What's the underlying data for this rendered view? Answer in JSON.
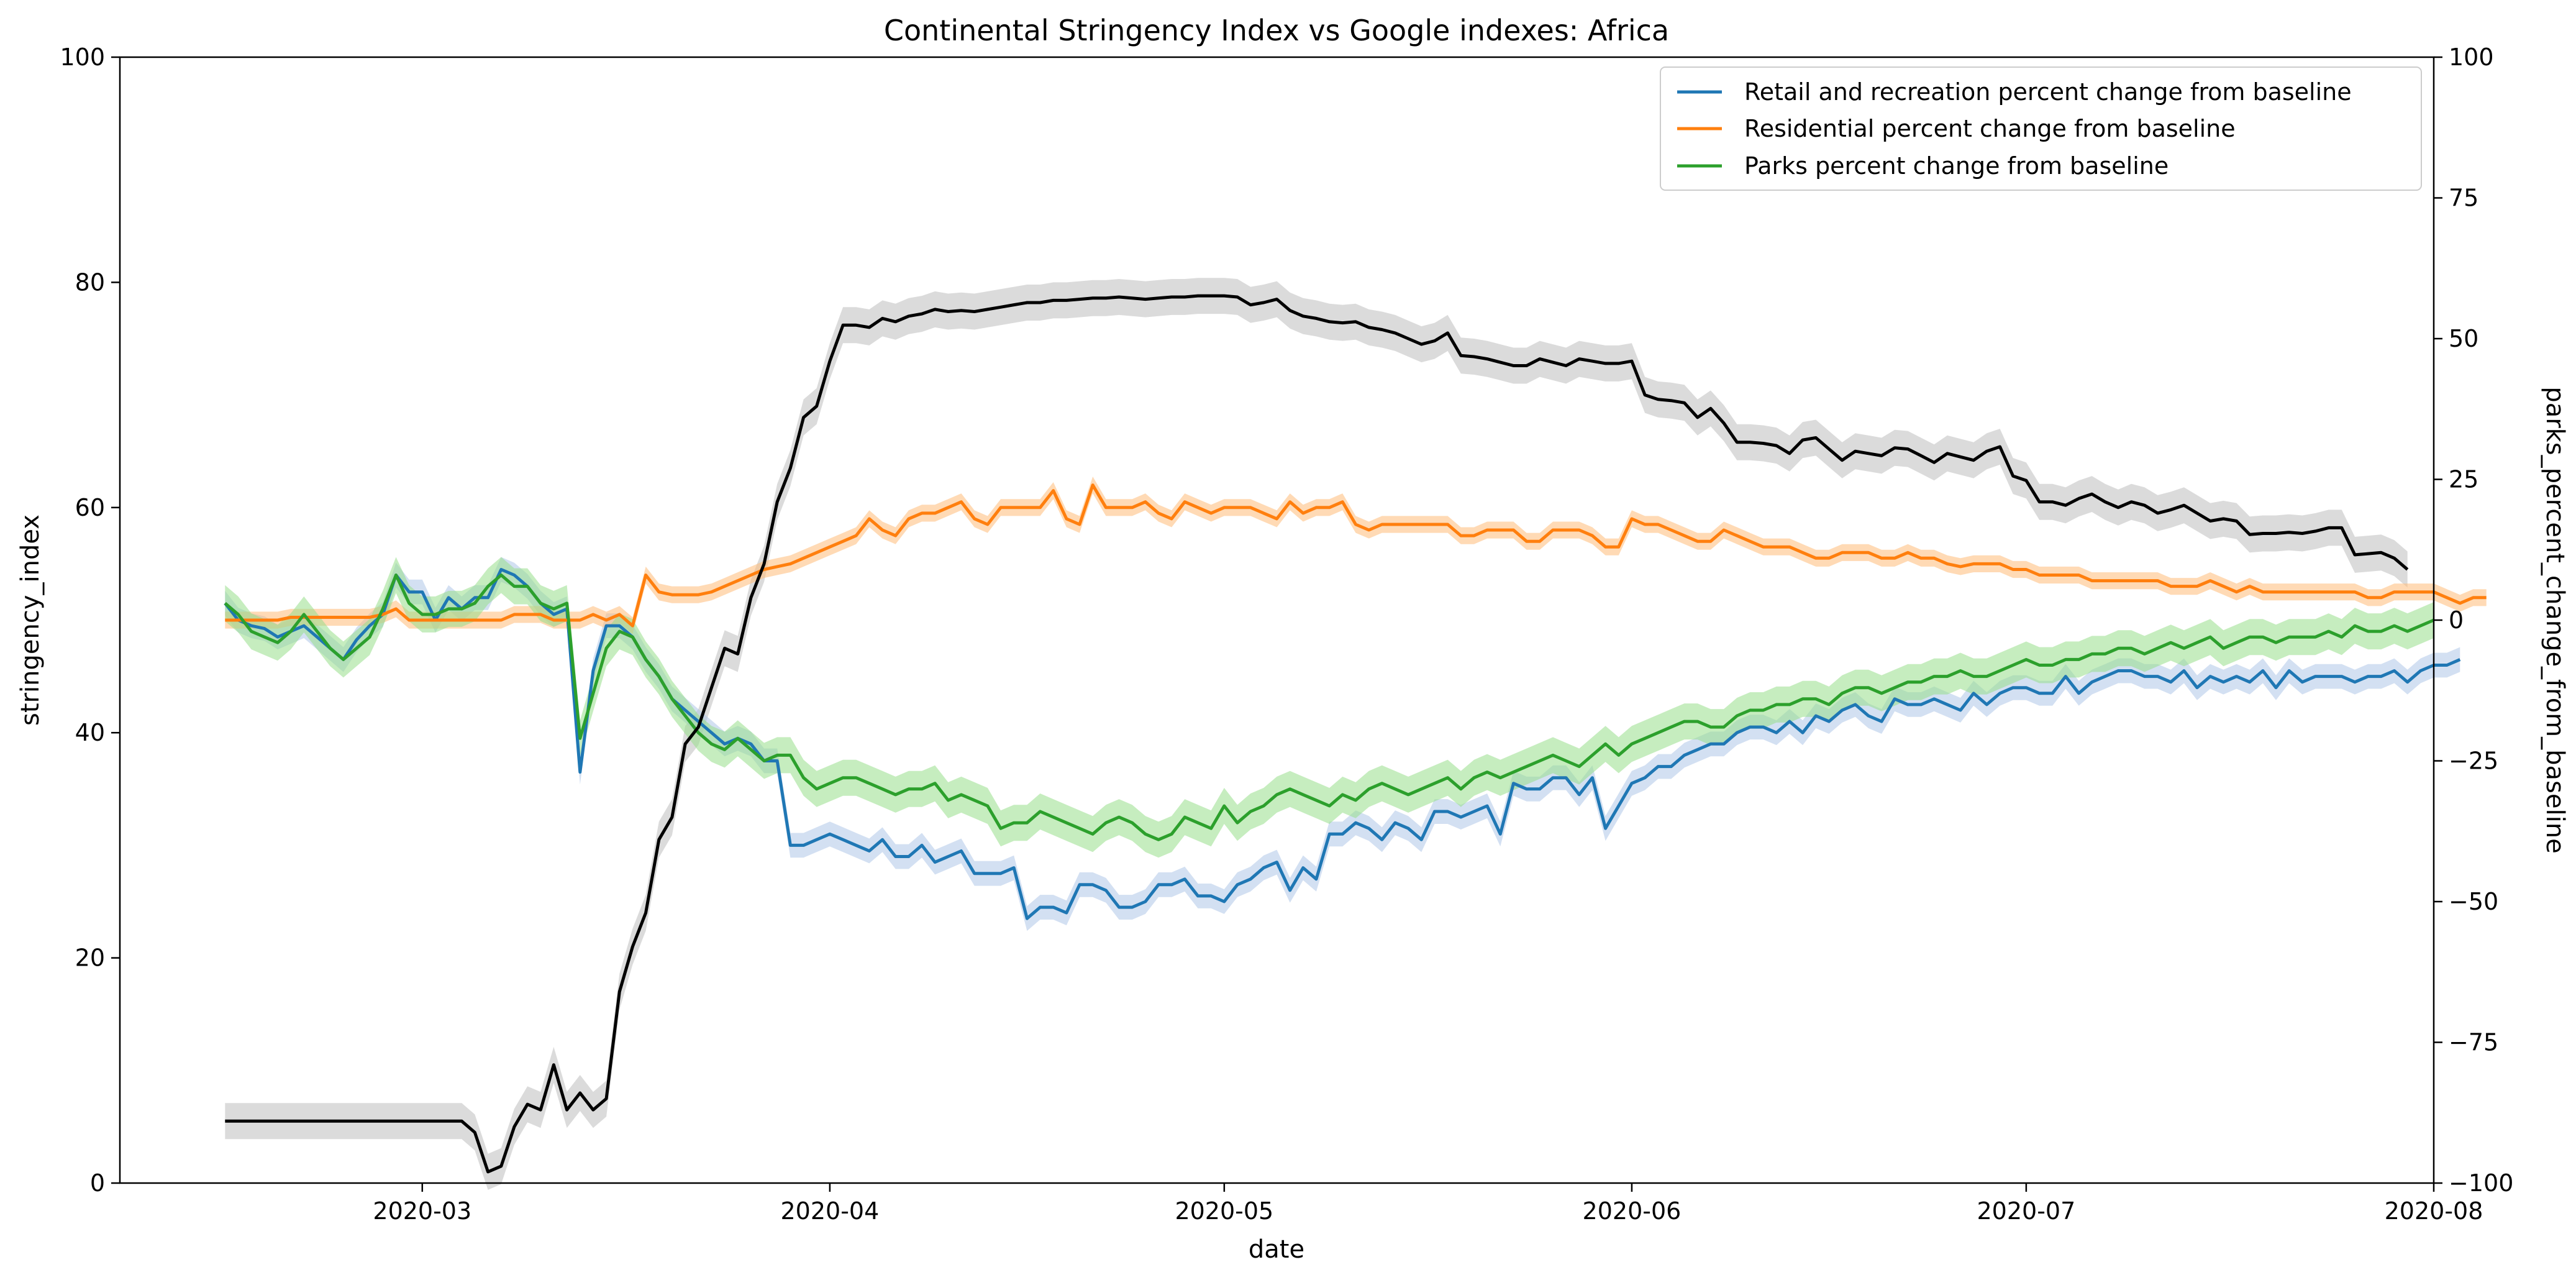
{
  "chart_data": {
    "type": "line",
    "title": "Continental Stringency Index vs Google indexes: Africa",
    "xlabel": "date",
    "ylabel_left": "stringency_index",
    "ylabel_right": "parks_percent_change_from_baseline",
    "x_range": [
      "2020-02-07",
      "2020-08-01"
    ],
    "ylim_left": [
      0,
      100
    ],
    "ylim_right": [
      -100,
      100
    ],
    "x_ticks": [
      "2020-03",
      "2020-04",
      "2020-05",
      "2020-06",
      "2020-07",
      "2020-08"
    ],
    "y_ticks_left": [
      "0",
      "20",
      "40",
      "60",
      "80",
      "100"
    ],
    "y_ticks_right": [
      "−100",
      "−75",
      "−50",
      "−25",
      "0",
      "25",
      "50",
      "75",
      "100"
    ],
    "legend": {
      "position": "top-right",
      "entries": [
        "Retail and recreation percent change from baseline",
        "Residential percent change from baseline",
        "Parks percent change from baseline"
      ]
    },
    "grid": false,
    "x_start_date": "2020-02-15",
    "series": [
      {
        "name": "stringency_index",
        "axis": "left",
        "color": "#000000",
        "band_color": "#bdbdbd",
        "band_halfwidth": 1.6,
        "values": [
          5.5,
          5.5,
          5.5,
          5.5,
          5.5,
          5.5,
          5.5,
          5.5,
          5.5,
          5.5,
          5.5,
          5.5,
          5.5,
          5.5,
          5.5,
          5.5,
          5.5,
          5.5,
          5.5,
          4.5,
          1,
          1.5,
          5,
          7,
          6.5,
          10.5,
          6.5,
          8,
          6.5,
          7.5,
          17,
          21,
          24,
          30.5,
          32.5,
          39,
          40.5,
          44,
          47.5,
          47,
          52,
          55,
          60.5,
          63.5,
          68,
          69,
          73,
          76.2,
          76.2,
          76,
          76.8,
          76.5,
          77,
          77.2,
          77.6,
          77.4,
          77.5,
          77.4,
          77.6,
          77.8,
          78,
          78.2,
          78.2,
          78.4,
          78.4,
          78.5,
          78.6,
          78.6,
          78.7,
          78.6,
          78.5,
          78.6,
          78.7,
          78.7,
          78.8,
          78.8,
          78.8,
          78.7,
          78,
          78.2,
          78.5,
          77.5,
          77,
          76.8,
          76.5,
          76.4,
          76.5,
          76,
          75.8,
          75.5,
          75,
          74.5,
          74.8,
          75.5,
          73.5,
          73.4,
          73.2,
          72.9,
          72.6,
          72.6,
          73.2,
          72.9,
          72.6,
          73.2,
          73,
          72.8,
          72.8,
          73,
          70,
          69.6,
          69.5,
          69.3,
          68,
          68.8,
          67.5,
          65.8,
          65.8,
          65.7,
          65.5,
          64.8,
          66,
          66.2,
          65.2,
          64.2,
          65,
          64.8,
          64.6,
          65.3,
          65.2,
          64.6,
          64,
          64.8,
          64.5,
          64.2,
          65,
          65.4,
          62.8,
          62.4,
          60.5,
          60.5,
          60.2,
          60.8,
          61.2,
          60.5,
          60,
          60.5,
          60.2,
          59.5,
          59.8,
          60.2,
          59.5,
          58.8,
          59,
          58.8,
          57.6,
          57.7,
          57.7,
          57.8,
          57.7,
          57.9,
          58.2,
          58.2,
          55.8,
          55.9,
          56,
          55.5,
          54.5
        ]
      },
      {
        "name": "Retail and recreation percent change from baseline",
        "axis": "right",
        "color": "#1f77b4",
        "band_color": "#aec7e8",
        "band_halfwidth": 2.2,
        "values": [
          3,
          0,
          -1,
          -1.5,
          -3,
          -2,
          -1,
          -3,
          -5,
          -7,
          -3.5,
          -1,
          1,
          8,
          5,
          5,
          0,
          4,
          2,
          4,
          4,
          9,
          8,
          6,
          3,
          1,
          2,
          -27,
          -9,
          -1,
          -1,
          -3,
          -7,
          -10,
          -14,
          -16,
          -18,
          -20,
          -22,
          -21,
          -22,
          -25,
          -25,
          -40,
          -40,
          -39,
          -38,
          -39,
          -40,
          -41,
          -39,
          -42,
          -42,
          -40,
          -43,
          -42,
          -41,
          -45,
          -45,
          -45,
          -44,
          -53,
          -51,
          -51,
          -52,
          -47,
          -47,
          -48,
          -51,
          -51,
          -50,
          -47,
          -47,
          -46,
          -49,
          -49,
          -50,
          -47,
          -46,
          -44,
          -43,
          -48,
          -44,
          -46,
          -38,
          -38,
          -36,
          -37,
          -39,
          -36,
          -37,
          -39,
          -34,
          -34,
          -35,
          -34,
          -33,
          -38,
          -29,
          -30,
          -30,
          -28,
          -28,
          -31,
          -28,
          -37,
          -33,
          -29,
          -28,
          -26,
          -26,
          -24,
          -23,
          -22,
          -22,
          -20,
          -19,
          -19,
          -20,
          -18,
          -20,
          -17,
          -18,
          -16,
          -15,
          -17,
          -18,
          -14,
          -15,
          -15,
          -14,
          -15,
          -16,
          -13,
          -15,
          -13,
          -12,
          -12,
          -13,
          -13,
          -10,
          -13,
          -11,
          -10,
          -9,
          -9,
          -10,
          -10,
          -11,
          -9,
          -12,
          -10,
          -11,
          -10,
          -11,
          -9,
          -12,
          -9,
          -11,
          -10,
          -10,
          -10,
          -11,
          -10,
          -10,
          -9,
          -11,
          -9,
          -8,
          -8,
          -7
        ]
      },
      {
        "name": "Residential percent change from baseline",
        "axis": "right",
        "color": "#ff7f0e",
        "band_color": "#ffbb78",
        "band_halfwidth": 1.5,
        "values": [
          0,
          0,
          0,
          0,
          0,
          0.5,
          0.5,
          0.5,
          0.5,
          0.5,
          0.5,
          0.5,
          1,
          2,
          0,
          0,
          0,
          0,
          0,
          0,
          0,
          0,
          1,
          1,
          1,
          0,
          0,
          0,
          1,
          0,
          1,
          -1,
          8,
          5,
          4.5,
          4.5,
          4.5,
          5,
          6,
          7,
          8,
          9,
          9.5,
          10,
          11,
          12,
          13,
          14,
          15,
          18,
          16,
          15,
          18,
          19,
          19,
          20,
          21,
          18,
          17,
          20,
          20,
          20,
          20,
          23,
          18,
          17,
          24,
          20,
          20,
          20,
          21,
          19,
          18,
          21,
          20,
          19,
          20,
          20,
          20,
          19,
          18,
          21,
          19,
          20,
          20,
          21,
          17,
          16,
          17,
          17,
          17,
          17,
          17,
          17,
          15,
          15,
          16,
          16,
          16,
          14,
          14,
          16,
          16,
          16,
          15,
          13,
          13,
          18,
          17,
          17,
          16,
          15,
          14,
          14,
          16,
          15,
          14,
          13,
          13,
          13,
          12,
          11,
          11,
          12,
          12,
          12,
          11,
          11,
          12,
          11,
          11,
          10,
          9.5,
          10,
          10,
          10,
          9,
          9,
          8,
          8,
          8,
          8,
          7,
          7,
          7,
          7,
          7,
          7,
          6,
          6,
          6,
          7,
          6,
          5,
          6,
          5,
          5,
          5,
          5,
          5,
          5,
          5,
          5,
          4,
          4,
          5,
          5,
          5,
          5,
          4,
          3,
          4,
          4
        ]
      },
      {
        "name": "Parks percent change from baseline",
        "axis": "right",
        "color": "#2ca02c",
        "band_color": "#98df8a",
        "band_halfwidth": 3.2,
        "values": [
          3,
          1,
          -2,
          -3,
          -4,
          -2,
          1,
          -2,
          -5,
          -7,
          -5,
          -3,
          2,
          8,
          3,
          1,
          1,
          2,
          2,
          3,
          6,
          8,
          6,
          6,
          3,
          2,
          3,
          -21,
          -13,
          -5,
          -2,
          -3,
          -7,
          -10,
          -14,
          -17,
          -20,
          -22,
          -23,
          -21,
          -23,
          -25,
          -24,
          -24,
          -28,
          -30,
          -29,
          -28,
          -28,
          -29,
          -30,
          -31,
          -30,
          -30,
          -29,
          -32,
          -31,
          -32,
          -33,
          -37,
          -36,
          -36,
          -34,
          -35,
          -36,
          -37,
          -38,
          -36,
          -35,
          -36,
          -38,
          -39,
          -38,
          -35,
          -36,
          -37,
          -33,
          -36,
          -34,
          -33,
          -31,
          -30,
          -31,
          -32,
          -33,
          -31,
          -32,
          -30,
          -29,
          -30,
          -31,
          -30,
          -29,
          -28,
          -30,
          -28,
          -27,
          -28,
          -27,
          -26,
          -25,
          -24,
          -25,
          -26,
          -24,
          -22,
          -24,
          -22,
          -21,
          -20,
          -19,
          -18,
          -18,
          -19,
          -19,
          -17,
          -16,
          -16,
          -15,
          -15,
          -14,
          -14,
          -15,
          -13,
          -12,
          -12,
          -13,
          -12,
          -11,
          -11,
          -10,
          -10,
          -9,
          -10,
          -10,
          -9,
          -8,
          -7,
          -8,
          -8,
          -7,
          -7,
          -6,
          -6,
          -5,
          -5,
          -6,
          -5,
          -4,
          -5,
          -4,
          -3,
          -5,
          -4,
          -3,
          -3,
          -4,
          -3,
          -3,
          -3,
          -2,
          -3,
          -1,
          -2,
          -2,
          -1,
          -2,
          -1,
          0
        ]
      }
    ]
  }
}
